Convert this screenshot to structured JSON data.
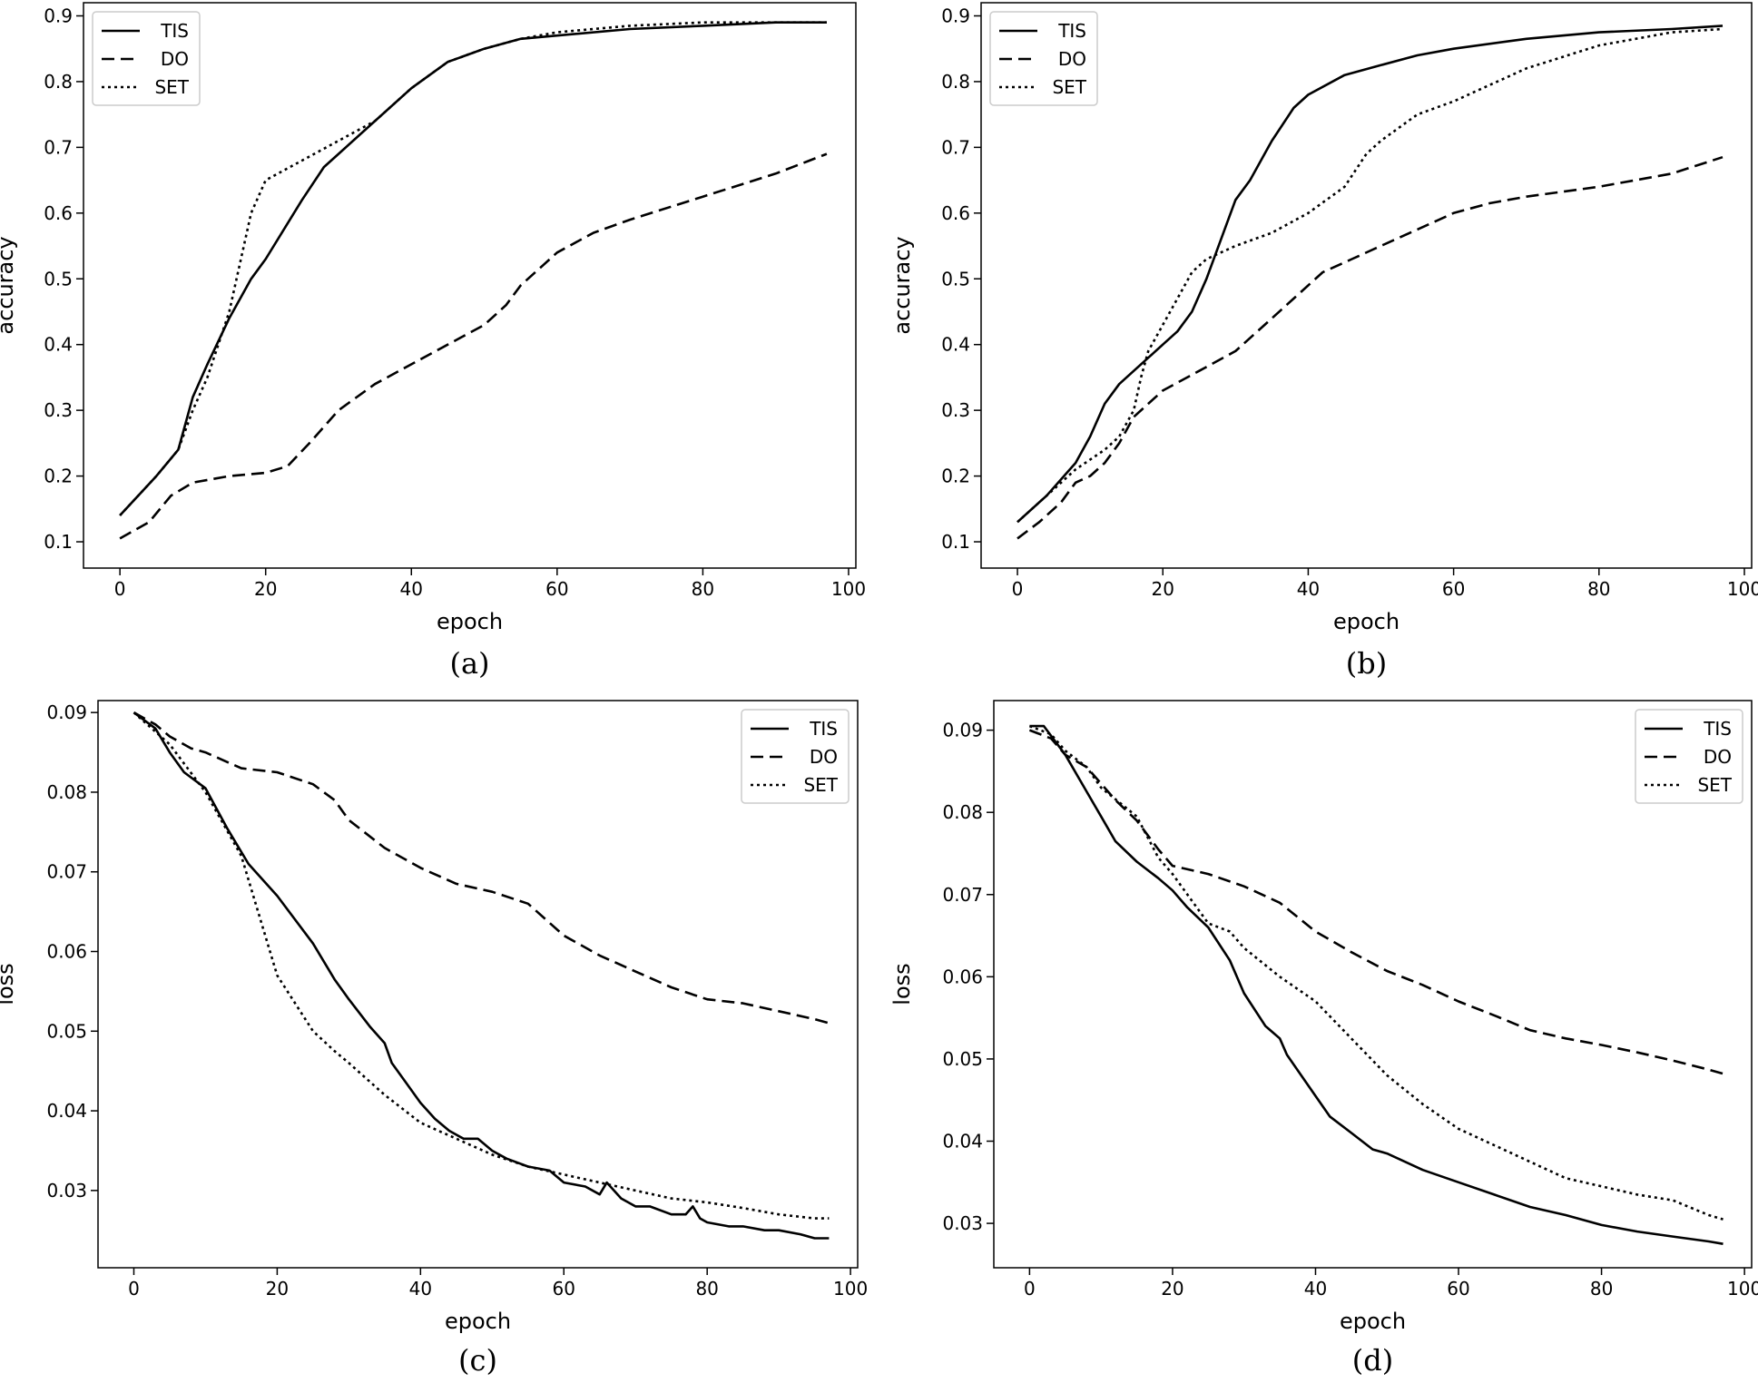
{
  "chart_data": [
    {
      "type": "line",
      "caption": "(a)",
      "xlabel": "epoch",
      "ylabel": "accuracy",
      "xlim": [
        -5,
        101
      ],
      "ylim": [
        0.06,
        0.92
      ],
      "xticks": [
        0,
        20,
        40,
        60,
        80,
        100
      ],
      "xtick_labels": [
        "0",
        "20",
        "40",
        "60",
        "80",
        "100"
      ],
      "yticks": [
        0.1,
        0.2,
        0.3,
        0.4,
        0.5,
        0.6,
        0.7,
        0.8,
        0.9
      ],
      "ytick_labels": [
        "0.1",
        "0.2",
        "0.3",
        "0.4",
        "0.5",
        "0.6",
        "0.7",
        "0.8",
        "0.9"
      ],
      "legend_position": "top-left",
      "series": [
        {
          "name": "TIS",
          "style": "solid",
          "x": [
            0,
            5,
            8,
            10,
            12,
            15,
            18,
            20,
            25,
            28,
            30,
            35,
            40,
            45,
            50,
            55,
            60,
            70,
            80,
            90,
            97
          ],
          "y": [
            0.14,
            0.2,
            0.24,
            0.32,
            0.37,
            0.44,
            0.5,
            0.53,
            0.62,
            0.67,
            0.69,
            0.74,
            0.79,
            0.83,
            0.85,
            0.865,
            0.87,
            0.88,
            0.885,
            0.89,
            0.89
          ]
        },
        {
          "name": "DO",
          "style": "dashed",
          "x": [
            0,
            4,
            7,
            10,
            15,
            20,
            23,
            26,
            30,
            35,
            40,
            45,
            50,
            53,
            55,
            58,
            60,
            65,
            70,
            80,
            90,
            97
          ],
          "y": [
            0.105,
            0.13,
            0.17,
            0.19,
            0.2,
            0.205,
            0.215,
            0.25,
            0.3,
            0.34,
            0.37,
            0.4,
            0.43,
            0.46,
            0.49,
            0.52,
            0.54,
            0.57,
            0.59,
            0.625,
            0.66,
            0.69
          ]
        },
        {
          "name": "SET",
          "style": "dotted",
          "x": [
            0,
            5,
            8,
            10,
            12,
            15,
            18,
            20,
            25,
            30,
            35,
            40,
            45,
            50,
            55,
            60,
            70,
            80,
            90,
            97
          ],
          "y": [
            0.14,
            0.2,
            0.24,
            0.3,
            0.35,
            0.45,
            0.6,
            0.65,
            0.68,
            0.71,
            0.74,
            0.79,
            0.83,
            0.85,
            0.865,
            0.875,
            0.885,
            0.89,
            0.89,
            0.89
          ]
        }
      ]
    },
    {
      "type": "line",
      "caption": "(b)",
      "xlabel": "epoch",
      "ylabel": "accuracy",
      "xlim": [
        -5,
        101
      ],
      "ylim": [
        0.06,
        0.92
      ],
      "xticks": [
        0,
        20,
        40,
        60,
        80,
        100
      ],
      "xtick_labels": [
        "0",
        "20",
        "40",
        "60",
        "80",
        "100"
      ],
      "yticks": [
        0.1,
        0.2,
        0.3,
        0.4,
        0.5,
        0.6,
        0.7,
        0.8,
        0.9
      ],
      "ytick_labels": [
        "0.1",
        "0.2",
        "0.3",
        "0.4",
        "0.5",
        "0.6",
        "0.7",
        "0.8",
        "0.9"
      ],
      "legend_position": "top-left",
      "series": [
        {
          "name": "TIS",
          "style": "solid",
          "x": [
            0,
            4,
            8,
            10,
            12,
            14,
            16,
            18,
            20,
            22,
            24,
            26,
            28,
            30,
            32,
            35,
            38,
            40,
            45,
            50,
            55,
            60,
            70,
            80,
            90,
            97
          ],
          "y": [
            0.13,
            0.17,
            0.22,
            0.26,
            0.31,
            0.34,
            0.36,
            0.38,
            0.4,
            0.42,
            0.45,
            0.5,
            0.56,
            0.62,
            0.65,
            0.71,
            0.76,
            0.78,
            0.81,
            0.825,
            0.84,
            0.85,
            0.865,
            0.875,
            0.88,
            0.885
          ]
        },
        {
          "name": "DO",
          "style": "dashed",
          "x": [
            0,
            3,
            6,
            8,
            10,
            12,
            14,
            16,
            18,
            20,
            25,
            30,
            34,
            38,
            42,
            46,
            50,
            55,
            60,
            65,
            70,
            80,
            90,
            97
          ],
          "y": [
            0.105,
            0.13,
            0.16,
            0.19,
            0.2,
            0.22,
            0.25,
            0.29,
            0.31,
            0.33,
            0.36,
            0.39,
            0.43,
            0.47,
            0.51,
            0.53,
            0.55,
            0.575,
            0.6,
            0.615,
            0.625,
            0.64,
            0.66,
            0.685
          ]
        },
        {
          "name": "SET",
          "style": "dotted",
          "x": [
            0,
            4,
            8,
            12,
            14,
            16,
            17,
            18,
            20,
            22,
            24,
            26,
            30,
            35,
            40,
            45,
            48,
            50,
            55,
            60,
            70,
            80,
            90,
            97
          ],
          "y": [
            0.13,
            0.17,
            0.21,
            0.24,
            0.26,
            0.3,
            0.35,
            0.39,
            0.43,
            0.47,
            0.51,
            0.53,
            0.55,
            0.57,
            0.6,
            0.64,
            0.69,
            0.71,
            0.75,
            0.77,
            0.82,
            0.855,
            0.875,
            0.88
          ]
        }
      ]
    },
    {
      "type": "line",
      "caption": "(c)",
      "xlabel": "epoch",
      "ylabel": "loss",
      "xlim": [
        -5,
        101
      ],
      "ylim": [
        0.0203,
        0.0915
      ],
      "xticks": [
        0,
        20,
        40,
        60,
        80,
        100
      ],
      "xtick_labels": [
        "0",
        "20",
        "40",
        "60",
        "80",
        "100"
      ],
      "yticks": [
        0.03,
        0.04,
        0.05,
        0.06,
        0.07,
        0.08,
        0.09
      ],
      "ytick_labels": [
        "0.03",
        "0.04",
        "0.05",
        "0.06",
        "0.07",
        "0.08",
        "0.09"
      ],
      "legend_position": "top-right",
      "series": [
        {
          "name": "TIS",
          "style": "solid",
          "x": [
            0,
            3,
            5,
            7,
            10,
            13,
            16,
            20,
            25,
            28,
            30,
            33,
            35,
            36,
            38,
            40,
            42,
            44,
            46,
            48,
            50,
            52,
            55,
            58,
            60,
            63,
            65,
            66,
            68,
            70,
            72,
            75,
            77,
            78,
            79,
            80,
            83,
            85,
            88,
            90,
            93,
            95,
            97
          ],
          "y": [
            0.09,
            0.088,
            0.085,
            0.0825,
            0.0805,
            0.0755,
            0.071,
            0.067,
            0.061,
            0.0565,
            0.054,
            0.0505,
            0.0485,
            0.046,
            0.0435,
            0.041,
            0.039,
            0.0375,
            0.0365,
            0.0365,
            0.035,
            0.034,
            0.033,
            0.0325,
            0.031,
            0.0305,
            0.0295,
            0.031,
            0.029,
            0.028,
            0.028,
            0.027,
            0.027,
            0.028,
            0.0265,
            0.026,
            0.0255,
            0.0255,
            0.025,
            0.025,
            0.0245,
            0.024,
            0.024
          ]
        },
        {
          "name": "DO",
          "style": "dashed",
          "x": [
            0,
            3,
            5,
            8,
            10,
            15,
            20,
            25,
            28,
            30,
            35,
            40,
            45,
            50,
            55,
            60,
            65,
            70,
            75,
            80,
            85,
            90,
            95,
            97
          ],
          "y": [
            0.09,
            0.0885,
            0.087,
            0.0855,
            0.085,
            0.083,
            0.0825,
            0.081,
            0.079,
            0.0765,
            0.073,
            0.0705,
            0.0685,
            0.0675,
            0.066,
            0.062,
            0.0595,
            0.0575,
            0.0555,
            0.054,
            0.0535,
            0.0525,
            0.0515,
            0.051
          ]
        },
        {
          "name": "SET",
          "style": "dotted",
          "x": [
            0,
            5,
            10,
            15,
            20,
            25,
            28,
            30,
            35,
            40,
            45,
            50,
            55,
            60,
            65,
            70,
            75,
            80,
            85,
            90,
            95,
            97
          ],
          "y": [
            0.09,
            0.086,
            0.08,
            0.072,
            0.057,
            0.05,
            0.0475,
            0.046,
            0.042,
            0.0385,
            0.0365,
            0.0345,
            0.033,
            0.032,
            0.031,
            0.03,
            0.029,
            0.0285,
            0.0278,
            0.027,
            0.0265,
            0.0265
          ]
        }
      ]
    },
    {
      "type": "line",
      "caption": "(d)",
      "xlabel": "epoch",
      "ylabel": "loss",
      "xlim": [
        -5,
        101
      ],
      "ylim": [
        0.0246,
        0.0936
      ],
      "xticks": [
        0,
        20,
        40,
        60,
        80,
        100
      ],
      "xtick_labels": [
        "0",
        "20",
        "40",
        "60",
        "80",
        "100"
      ],
      "yticks": [
        0.03,
        0.04,
        0.05,
        0.06,
        0.07,
        0.08,
        0.09
      ],
      "ytick_labels": [
        "0.03",
        "0.04",
        "0.05",
        "0.06",
        "0.07",
        "0.08",
        "0.09"
      ],
      "legend_position": "top-right",
      "series": [
        {
          "name": "TIS",
          "style": "solid",
          "x": [
            0,
            2,
            5,
            8,
            10,
            12,
            15,
            18,
            20,
            22,
            25,
            28,
            30,
            33,
            35,
            36,
            38,
            40,
            42,
            45,
            48,
            50,
            55,
            60,
            65,
            70,
            75,
            80,
            85,
            90,
            95,
            97
          ],
          "y": [
            0.0905,
            0.0905,
            0.087,
            0.0825,
            0.0795,
            0.0765,
            0.074,
            0.072,
            0.0705,
            0.0685,
            0.066,
            0.062,
            0.058,
            0.054,
            0.0525,
            0.0505,
            0.048,
            0.0455,
            0.043,
            0.041,
            0.039,
            0.0385,
            0.0365,
            0.035,
            0.0335,
            0.032,
            0.031,
            0.0298,
            0.029,
            0.0284,
            0.0278,
            0.0275
          ]
        },
        {
          "name": "DO",
          "style": "dashed",
          "x": [
            0,
            3,
            5,
            8,
            10,
            12,
            15,
            18,
            20,
            25,
            30,
            35,
            40,
            45,
            50,
            55,
            60,
            65,
            70,
            75,
            80,
            85,
            90,
            95,
            97
          ],
          "y": [
            0.09,
            0.089,
            0.087,
            0.0855,
            0.0835,
            0.0815,
            0.079,
            0.0755,
            0.0735,
            0.0725,
            0.071,
            0.069,
            0.0655,
            0.063,
            0.0607,
            0.059,
            0.057,
            0.0553,
            0.0535,
            0.0525,
            0.0517,
            0.0508,
            0.0498,
            0.0487,
            0.0482
          ]
        },
        {
          "name": "SET",
          "style": "dotted",
          "x": [
            0,
            3,
            5,
            8,
            10,
            15,
            18,
            20,
            25,
            28,
            30,
            35,
            40,
            45,
            50,
            55,
            60,
            65,
            70,
            75,
            80,
            85,
            90,
            95,
            97
          ],
          "y": [
            0.0905,
            0.0895,
            0.0875,
            0.0855,
            0.083,
            0.0795,
            0.0745,
            0.0725,
            0.0665,
            0.0655,
            0.0635,
            0.06,
            0.057,
            0.0525,
            0.048,
            0.0445,
            0.0415,
            0.0395,
            0.0375,
            0.0355,
            0.0345,
            0.0335,
            0.0328,
            0.031,
            0.0305
          ]
        }
      ]
    }
  ]
}
